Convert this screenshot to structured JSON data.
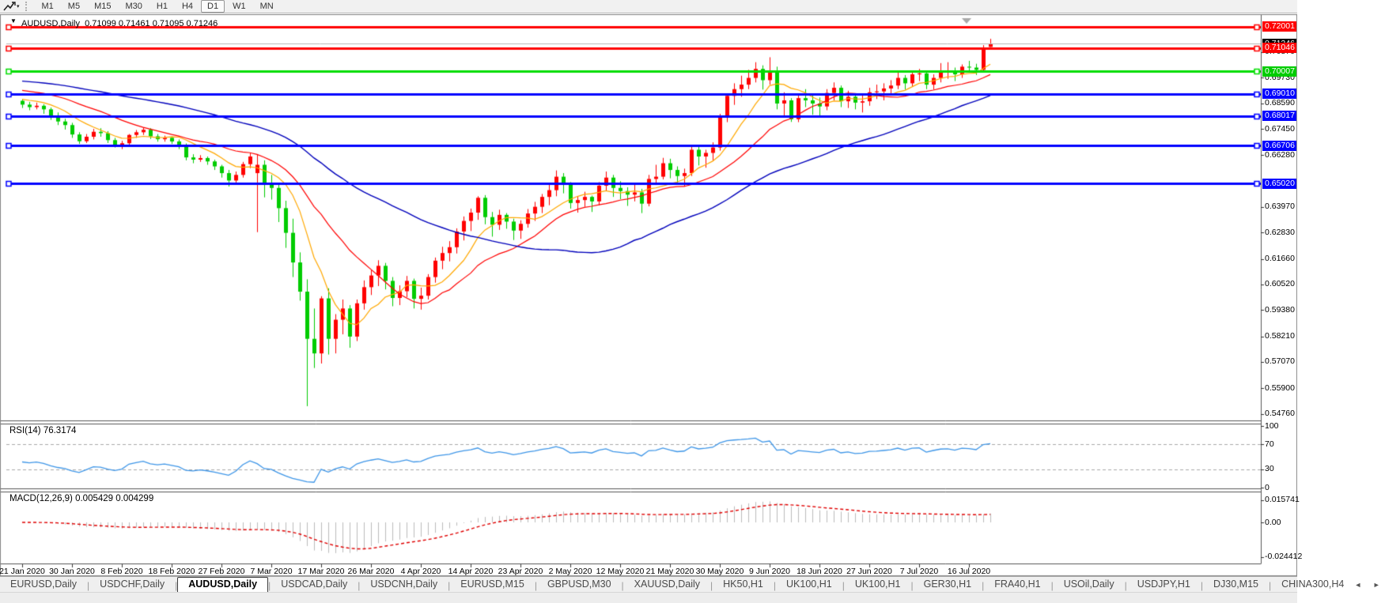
{
  "toolbar": {
    "timeframes": [
      "M1",
      "M5",
      "M15",
      "M30",
      "H1",
      "H4",
      "D1",
      "W1",
      "MN"
    ],
    "active_timeframe": "D1"
  },
  "chart_data": {
    "type": "candlestick",
    "symbol_title": "AUDUSD,Daily  0.71099 0.71461 0.71095 0.71246",
    "current_bar": {
      "open": "0.71099",
      "high": "0.71461",
      "low": "0.71095",
      "close": "0.71246"
    },
    "up_color": "#FF0000",
    "down_color": "#00CC00",
    "candles": [
      [
        0.687,
        0.6878,
        0.6838,
        0.6853
      ],
      [
        0.6853,
        0.6865,
        0.6828,
        0.6842
      ],
      [
        0.6842,
        0.6862,
        0.6832,
        0.6848
      ],
      [
        0.6848,
        0.6855,
        0.6812,
        0.6832
      ],
      [
        0.6832,
        0.684,
        0.6785,
        0.6801
      ],
      [
        0.6801,
        0.6818,
        0.6762,
        0.6778
      ],
      [
        0.6778,
        0.679,
        0.6742,
        0.6762
      ],
      [
        0.6762,
        0.6772,
        0.6705,
        0.672
      ],
      [
        0.672,
        0.673,
        0.6678,
        0.669
      ],
      [
        0.669,
        0.6722,
        0.6682,
        0.671
      ],
      [
        0.671,
        0.6745,
        0.6698,
        0.6732
      ],
      [
        0.6732,
        0.6748,
        0.671,
        0.6726
      ],
      [
        0.6726,
        0.6735,
        0.6682,
        0.6695
      ],
      [
        0.6695,
        0.6705,
        0.6662,
        0.6672
      ],
      [
        0.6672,
        0.6692,
        0.6655,
        0.6681
      ],
      [
        0.6681,
        0.6722,
        0.6672,
        0.6718
      ],
      [
        0.6718,
        0.674,
        0.6705,
        0.673
      ],
      [
        0.673,
        0.6752,
        0.6718,
        0.6741
      ],
      [
        0.6741,
        0.6748,
        0.67,
        0.6712
      ],
      [
        0.6712,
        0.6722,
        0.6688,
        0.6699
      ],
      [
        0.6699,
        0.6715,
        0.6688,
        0.6705
      ],
      [
        0.6705,
        0.6712,
        0.6678,
        0.6689
      ],
      [
        0.6689,
        0.6698,
        0.6655,
        0.6672
      ],
      [
        0.6672,
        0.668,
        0.6605,
        0.6618
      ],
      [
        0.6618,
        0.6632,
        0.6592,
        0.6608
      ],
      [
        0.6608,
        0.6628,
        0.6598,
        0.6615
      ],
      [
        0.6615,
        0.6622,
        0.6585,
        0.66
      ],
      [
        0.66,
        0.6608,
        0.6562,
        0.6578
      ],
      [
        0.6578,
        0.6585,
        0.6528,
        0.6548
      ],
      [
        0.6548,
        0.6562,
        0.6488,
        0.6515
      ],
      [
        0.6515,
        0.6555,
        0.6502,
        0.654
      ],
      [
        0.654,
        0.6598,
        0.6528,
        0.6588
      ],
      [
        0.6588,
        0.6638,
        0.657,
        0.6622
      ],
      [
        0.6548,
        0.663,
        0.6285,
        0.6585
      ],
      [
        0.6585,
        0.6605,
        0.644,
        0.6498
      ],
      [
        0.6498,
        0.654,
        0.643,
        0.6482
      ],
      [
        0.6482,
        0.6505,
        0.633,
        0.6392
      ],
      [
        0.6392,
        0.6425,
        0.6215,
        0.6282
      ],
      [
        0.6282,
        0.6345,
        0.6085,
        0.615
      ],
      [
        0.615,
        0.6195,
        0.598,
        0.602
      ],
      [
        0.602,
        0.6075,
        0.551,
        0.581
      ],
      [
        0.581,
        0.5945,
        0.568,
        0.5745
      ],
      [
        0.5745,
        0.6,
        0.57,
        0.599
      ],
      [
        0.599,
        0.6035,
        0.574,
        0.581
      ],
      [
        0.581,
        0.592,
        0.5745,
        0.5895
      ],
      [
        0.5895,
        0.5985,
        0.583,
        0.5945
      ],
      [
        0.5945,
        0.596,
        0.577,
        0.582
      ],
      [
        0.582,
        0.5985,
        0.58,
        0.5968
      ],
      [
        0.5968,
        0.607,
        0.594,
        0.604
      ],
      [
        0.604,
        0.6115,
        0.6005,
        0.6092
      ],
      [
        0.6092,
        0.616,
        0.6045,
        0.6135
      ],
      [
        0.6135,
        0.6148,
        0.603,
        0.6068
      ],
      [
        0.6068,
        0.6085,
        0.5955,
        0.5992
      ],
      [
        0.5992,
        0.6048,
        0.596,
        0.6022
      ],
      [
        0.6022,
        0.609,
        0.5995,
        0.6068
      ],
      [
        0.6068,
        0.6078,
        0.5945,
        0.5988
      ],
      [
        0.5988,
        0.6038,
        0.594,
        0.6002
      ],
      [
        0.6002,
        0.6098,
        0.5985,
        0.6085
      ],
      [
        0.6085,
        0.6172,
        0.606,
        0.6158
      ],
      [
        0.6158,
        0.622,
        0.612,
        0.6192
      ],
      [
        0.6192,
        0.6245,
        0.6155,
        0.6218
      ],
      [
        0.6218,
        0.6302,
        0.619,
        0.6288
      ],
      [
        0.6288,
        0.6355,
        0.6248,
        0.6335
      ],
      [
        0.6335,
        0.639,
        0.629,
        0.6372
      ],
      [
        0.6372,
        0.6445,
        0.634,
        0.6438
      ],
      [
        0.6438,
        0.645,
        0.632,
        0.6352
      ],
      [
        0.6352,
        0.6375,
        0.6265,
        0.6318
      ],
      [
        0.6318,
        0.6385,
        0.6295,
        0.6362
      ],
      [
        0.6362,
        0.637,
        0.63,
        0.6332
      ],
      [
        0.6332,
        0.6345,
        0.625,
        0.6292
      ],
      [
        0.6292,
        0.6338,
        0.6255,
        0.6322
      ],
      [
        0.6322,
        0.6388,
        0.6305,
        0.6368
      ],
      [
        0.6368,
        0.642,
        0.6335,
        0.6398
      ],
      [
        0.6398,
        0.6455,
        0.637,
        0.6442
      ],
      [
        0.6442,
        0.6498,
        0.6405,
        0.6472
      ],
      [
        0.6472,
        0.656,
        0.6445,
        0.6532
      ],
      [
        0.6532,
        0.6548,
        0.6458,
        0.6498
      ],
      [
        0.6498,
        0.6508,
        0.639,
        0.6415
      ],
      [
        0.6415,
        0.6445,
        0.6372,
        0.6428
      ],
      [
        0.6428,
        0.6465,
        0.6398,
        0.6442
      ],
      [
        0.6442,
        0.6448,
        0.6375,
        0.6422
      ],
      [
        0.6422,
        0.6508,
        0.6405,
        0.6492
      ],
      [
        0.6492,
        0.6555,
        0.647,
        0.6528
      ],
      [
        0.6528,
        0.654,
        0.6442,
        0.6482
      ],
      [
        0.6482,
        0.6512,
        0.6432,
        0.6468
      ],
      [
        0.6468,
        0.6485,
        0.6402,
        0.6452
      ],
      [
        0.6452,
        0.6502,
        0.6422,
        0.6462
      ],
      [
        0.6462,
        0.6478,
        0.637,
        0.6412
      ],
      [
        0.6412,
        0.654,
        0.64,
        0.6522
      ],
      [
        0.6522,
        0.6585,
        0.6495,
        0.6532
      ],
      [
        0.6532,
        0.6616,
        0.652,
        0.6592
      ],
      [
        0.6592,
        0.6612,
        0.6525,
        0.6562
      ],
      [
        0.6562,
        0.6578,
        0.6498,
        0.6535
      ],
      [
        0.6535,
        0.6568,
        0.6488,
        0.6548
      ],
      [
        0.6548,
        0.6665,
        0.6535,
        0.6652
      ],
      [
        0.6652,
        0.6672,
        0.6582,
        0.6622
      ],
      [
        0.6622,
        0.6652,
        0.6572,
        0.6638
      ],
      [
        0.6638,
        0.6685,
        0.6605,
        0.6662
      ],
      [
        0.6662,
        0.6812,
        0.6648,
        0.6798
      ],
      [
        0.6798,
        0.6902,
        0.6775,
        0.6892
      ],
      [
        0.6892,
        0.6948,
        0.6852,
        0.6922
      ],
      [
        0.6922,
        0.6982,
        0.6888,
        0.6942
      ],
      [
        0.6942,
        0.7008,
        0.6922,
        0.6972
      ],
      [
        0.6972,
        0.7042,
        0.6952,
        0.7012
      ],
      [
        0.7012,
        0.7028,
        0.692,
        0.6962
      ],
      [
        0.6962,
        0.7064,
        0.6942,
        0.7002
      ],
      [
        0.7002,
        0.7022,
        0.6832,
        0.6858
      ],
      [
        0.6858,
        0.6908,
        0.6798,
        0.6872
      ],
      [
        0.6872,
        0.6882,
        0.6776,
        0.6788
      ],
      [
        0.6788,
        0.6902,
        0.6775,
        0.6882
      ],
      [
        0.6882,
        0.6922,
        0.6842,
        0.6872
      ],
      [
        0.6872,
        0.6898,
        0.6808,
        0.6858
      ],
      [
        0.6858,
        0.6885,
        0.6802,
        0.6845
      ],
      [
        0.6845,
        0.6922,
        0.6828,
        0.6905
      ],
      [
        0.6905,
        0.6952,
        0.6872,
        0.6928
      ],
      [
        0.6928,
        0.6938,
        0.6842,
        0.6868
      ],
      [
        0.6868,
        0.6915,
        0.6838,
        0.6888
      ],
      [
        0.6888,
        0.6902,
        0.6832,
        0.6862
      ],
      [
        0.6862,
        0.6895,
        0.6818,
        0.6868
      ],
      [
        0.6868,
        0.6928,
        0.6848,
        0.6908
      ],
      [
        0.6908,
        0.6942,
        0.6878,
        0.6912
      ],
      [
        0.6912,
        0.6948,
        0.6872,
        0.6925
      ],
      [
        0.6925,
        0.6962,
        0.6898,
        0.6938
      ],
      [
        0.6938,
        0.6998,
        0.6922,
        0.6972
      ],
      [
        0.6972,
        0.6985,
        0.692,
        0.6948
      ],
      [
        0.6948,
        0.7002,
        0.6932,
        0.6988
      ],
      [
        0.6988,
        0.7012,
        0.6958,
        0.6992
      ],
      [
        0.6992,
        0.7,
        0.6922,
        0.6942
      ],
      [
        0.6942,
        0.6988,
        0.692,
        0.6972
      ],
      [
        0.6972,
        0.7038,
        0.6952,
        0.6998
      ],
      [
        0.6998,
        0.7042,
        0.6968,
        0.7002
      ],
      [
        0.7002,
        0.7018,
        0.6958,
        0.6988
      ],
      [
        0.6988,
        0.7032,
        0.6972,
        0.7022
      ],
      [
        0.7022,
        0.7048,
        0.6995,
        0.7018
      ],
      [
        0.7018,
        0.7035,
        0.6985,
        0.7008
      ],
      [
        0.7008,
        0.7118,
        0.7002,
        0.7103
      ],
      [
        0.71099,
        0.71461,
        0.71095,
        0.71246
      ]
    ],
    "moving_averages": [
      {
        "name": "fast-ma",
        "period": 8,
        "color": "#FFA800",
        "seed": 0.688
      },
      {
        "name": "medium-ma",
        "period": 18,
        "color": "#FF0000",
        "seed": 0.692
      },
      {
        "name": "slow-ma",
        "period": 45,
        "color": "#0000BB",
        "seed": 0.696
      }
    ],
    "horizontal_lines": [
      {
        "label": "0.72001",
        "price": 0.72001,
        "color": "#FF0000",
        "width": 3,
        "badge": "#FF0000",
        "current": false
      },
      {
        "label": "0.71246",
        "price": 0.71246,
        "color": "#B8B8B8",
        "width": 1,
        "badge": "#000000",
        "current": true
      },
      {
        "label": "0.71046",
        "price": 0.71046,
        "color": "#FF0000",
        "width": 3,
        "badge": "#FF0000",
        "current": false
      },
      {
        "label": "0.70007",
        "price": 0.70007,
        "color": "#00DD00",
        "width": 3,
        "badge": "#00CC00",
        "current": false
      },
      {
        "label": "0.69010",
        "price": 0.6901,
        "color": "#0000FF",
        "width": 3,
        "badge": "#0000FF",
        "current": false
      },
      {
        "label": "0.68017",
        "price": 0.68017,
        "color": "#0000FF",
        "width": 3,
        "badge": "#0000FF",
        "current": false
      },
      {
        "label": "0.66706",
        "price": 0.66706,
        "color": "#0000FF",
        "width": 3,
        "badge": "#0000FF",
        "current": false
      },
      {
        "label": "0.65020",
        "price": 0.6502,
        "color": "#0000FF",
        "width": 3,
        "badge": "#0000FF",
        "current": false
      }
    ],
    "y_ticks": [
      "0.70870",
      "0.69730",
      "0.68590",
      "0.67450",
      "0.66280",
      "0.63970",
      "0.62830",
      "0.61660",
      "0.60520",
      "0.59380",
      "0.58210",
      "0.57070",
      "0.55900",
      "0.54760"
    ],
    "x_labels": [
      "21 Jan 2020",
      "30 Jan 2020",
      "8 Feb 2020",
      "18 Feb 2020",
      "27 Feb 2020",
      "7 Mar 2020",
      "17 Mar 2020",
      "26 Mar 2020",
      "4 Apr 2020",
      "14 Apr 2020",
      "23 Apr 2020",
      "2 May 2020",
      "12 May 2020",
      "21 May 2020",
      "30 May 2020",
      "9 Jun 2020",
      "18 Jun 2020",
      "27 Jun 2020",
      "7 Jul 2020",
      "16 Jul 2020"
    ],
    "rsi": {
      "label": "RSI(14) 76.3174",
      "period": 14,
      "color": "#3E96E8",
      "level_line_values": [
        70,
        30
      ],
      "scale_labels": [
        "100",
        "70",
        "30",
        "0"
      ],
      "scale_values": [
        100,
        70,
        30,
        0
      ]
    },
    "macd": {
      "label": "MACD(12,26,9) 0.005429 0.004299",
      "fast": 12,
      "slow": 26,
      "signal": 9,
      "hist_color": "#BBBBBB",
      "signal_color": "#E00000",
      "scale_labels": [
        "0.015741",
        "0.00",
        "-0.024412"
      ],
      "scale_values": [
        0.015741,
        0.0,
        -0.024412
      ]
    }
  },
  "tabs": {
    "items": [
      "EURUSD,Daily",
      "USDCHF,Daily",
      "AUDUSD,Daily",
      "USDCAD,Daily",
      "USDCNH,Daily",
      "EURUSD,M15",
      "GBPUSD,M30",
      "XAUUSD,Daily",
      "HK50,H1",
      "UK100,H1",
      "UK100,H1",
      "GER30,H1",
      "FRA40,H1",
      "USOil,Daily",
      "USDJPY,H1",
      "DJ30,M15",
      "CHINA300,H4"
    ],
    "active_index": 2,
    "left_arrow": "◄",
    "right_arrow": "►"
  },
  "window_marker": "▼"
}
